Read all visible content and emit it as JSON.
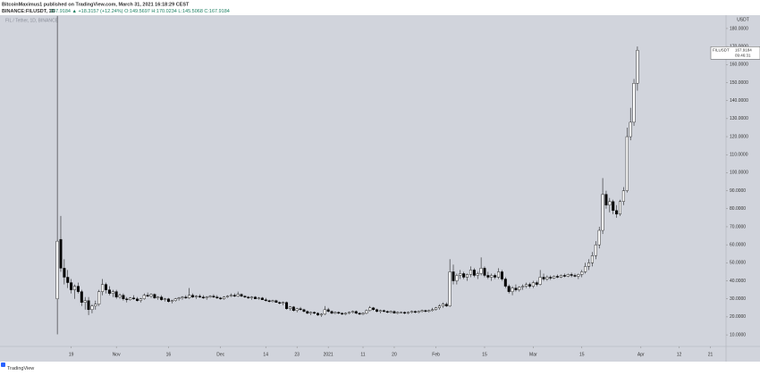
{
  "header": {
    "author_line": "BitcoinMaximus1 published on TradingView.com, March 31, 2021 16:18:29 CEST",
    "symbol": "BINANCE:FILUSDT, 1D",
    "quote": "167.9184 ▲ +18.3157 (+12.24%) O:149.5697 H:170.0234 L:145.5068 C:167.9184"
  },
  "footer": {
    "brand": "TradingView"
  },
  "chart_data": {
    "type": "candlestick",
    "watermark": "FIL / Tether, 1D, BINANCE",
    "y_unit": "USDT",
    "symbol_label": "FILUSDT",
    "countdown": "09:46:31",
    "up_color": "#ffffff",
    "down_color": "#000000",
    "outline_color": "#000000",
    "grid": false,
    "xlim": [
      -16.5,
      192.5
    ],
    "xticks": [
      {
        "value": 4,
        "label": "19"
      },
      {
        "value": 17,
        "label": "Nov"
      },
      {
        "value": 32,
        "label": "16"
      },
      {
        "value": 47,
        "label": "Dec"
      },
      {
        "value": 60,
        "label": "14"
      },
      {
        "value": 69,
        "label": "23"
      },
      {
        "value": 78,
        "label": "2021"
      },
      {
        "value": 88,
        "label": "11"
      },
      {
        "value": 97,
        "label": "20"
      },
      {
        "value": 109,
        "label": "Feb"
      },
      {
        "value": 123,
        "label": "15"
      },
      {
        "value": 137,
        "label": "Mar"
      },
      {
        "value": 151,
        "label": "15"
      },
      {
        "value": 168,
        "label": "Apr"
      },
      {
        "value": 179,
        "label": "12"
      },
      {
        "value": 188,
        "label": "21"
      }
    ],
    "ylim": [
      3.6,
      187.4
    ],
    "yticks": [
      {
        "value": 10,
        "label": "10.0000"
      },
      {
        "value": 20,
        "label": "20.0000"
      },
      {
        "value": 30,
        "label": "30.0000"
      },
      {
        "value": 40,
        "label": "40.0000"
      },
      {
        "value": 50,
        "label": "50.0000"
      },
      {
        "value": 60,
        "label": "60.0000"
      },
      {
        "value": 70,
        "label": "70.0000"
      },
      {
        "value": 80,
        "label": "80.0000"
      },
      {
        "value": 90,
        "label": "90.0000"
      },
      {
        "value": 100,
        "label": "100.0000"
      },
      {
        "value": 110,
        "label": "110.0000"
      },
      {
        "value": 120,
        "label": "120.0000"
      },
      {
        "value": 130,
        "label": "130.0000"
      },
      {
        "value": 140,
        "label": "140.0000"
      },
      {
        "value": 150,
        "label": "150.0000"
      },
      {
        "value": 160,
        "label": "160.0000"
      },
      {
        "value": 170,
        "label": "170.0000"
      },
      {
        "value": 180,
        "label": "180.0000"
      }
    ],
    "ohlc": [
      [
        30,
        187,
        10.3,
        62
      ],
      [
        63,
        76,
        45,
        47
      ],
      [
        47,
        52,
        38,
        42
      ],
      [
        42,
        46,
        36,
        39
      ],
      [
        39,
        41,
        33,
        35
      ],
      [
        35,
        38,
        30,
        37
      ],
      [
        37,
        39,
        33,
        34
      ],
      [
        34,
        35,
        26,
        28
      ],
      [
        28,
        31,
        24,
        29
      ],
      [
        29,
        31,
        21,
        24
      ],
      [
        24,
        27,
        22,
        26
      ],
      [
        26,
        29,
        24,
        27
      ],
      [
        27,
        35,
        26,
        34
      ],
      [
        34,
        41,
        32,
        38
      ],
      [
        38,
        39,
        33,
        35
      ],
      [
        35,
        37,
        32,
        33
      ],
      [
        33,
        35,
        31,
        34
      ],
      [
        34,
        35,
        30,
        31
      ],
      [
        31,
        33,
        30,
        32
      ],
      [
        32,
        33,
        29,
        30
      ],
      [
        30,
        31,
        28,
        29.5
      ],
      [
        29.5,
        31,
        29,
        30.5
      ],
      [
        30.5,
        32,
        29.5,
        30
      ],
      [
        30,
        31,
        28.5,
        29
      ],
      [
        29,
        30.5,
        28,
        30
      ],
      [
        30,
        33,
        29.5,
        32
      ],
      [
        32,
        33.5,
        31,
        31.5
      ],
      [
        31.5,
        33,
        30.5,
        32.5
      ],
      [
        32.5,
        33,
        30,
        30.5
      ],
      [
        30.5,
        31.5,
        29.5,
        31
      ],
      [
        31,
        32,
        29,
        29.5
      ],
      [
        29.5,
        30.5,
        28.5,
        30
      ],
      [
        30,
        30.5,
        28,
        28.5
      ],
      [
        28.5,
        29.5,
        27.5,
        29
      ],
      [
        29,
        30.5,
        28.5,
        30
      ],
      [
        30,
        31,
        29,
        30.5
      ],
      [
        30.5,
        31.5,
        29.5,
        31
      ],
      [
        31,
        32,
        30,
        30.5
      ],
      [
        30.5,
        36,
        30,
        32
      ],
      [
        32,
        33,
        30.5,
        31
      ],
      [
        31,
        32,
        30,
        31.5
      ],
      [
        31.5,
        32.5,
        30.5,
        31
      ],
      [
        31,
        32,
        30,
        30.5
      ],
      [
        30.5,
        31.5,
        29.5,
        31
      ],
      [
        31,
        32,
        30.5,
        31.5
      ],
      [
        31.5,
        32.5,
        30.5,
        31
      ],
      [
        31,
        32,
        30,
        30.5
      ],
      [
        30.5,
        31,
        29.5,
        30
      ],
      [
        30,
        31.5,
        29.5,
        31
      ],
      [
        31,
        32,
        30.5,
        31.5
      ],
      [
        31.5,
        33,
        31,
        32
      ],
      [
        32,
        33,
        31,
        31.5
      ],
      [
        31.5,
        34,
        31,
        32.5
      ],
      [
        32.5,
        33,
        31,
        31.5
      ],
      [
        31.5,
        32,
        30.5,
        31
      ],
      [
        31,
        31.5,
        30,
        30.5
      ],
      [
        30.5,
        31.5,
        29.5,
        31
      ],
      [
        31,
        31.5,
        30,
        30
      ],
      [
        30,
        31,
        29.5,
        30.5
      ],
      [
        30.5,
        31,
        29.5,
        29.5
      ],
      [
        29.5,
        30.5,
        28.5,
        29
      ],
      [
        29,
        29.5,
        28,
        28.5
      ],
      [
        28.5,
        29.5,
        28,
        29
      ],
      [
        29,
        29.5,
        28,
        28
      ],
      [
        28,
        28.5,
        27,
        27.5
      ],
      [
        27.5,
        28.5,
        26.5,
        28
      ],
      [
        28,
        28.5,
        24,
        24.5
      ],
      [
        24.5,
        26,
        23.5,
        25.5
      ],
      [
        25.5,
        26,
        23,
        23.5
      ],
      [
        23.5,
        25,
        22.5,
        24.5
      ],
      [
        24.5,
        25.5,
        23.5,
        24
      ],
      [
        24,
        24.5,
        22.5,
        23
      ],
      [
        23,
        23.5,
        21.5,
        22
      ],
      [
        22,
        23,
        21,
        22.5
      ],
      [
        22.5,
        23,
        21.5,
        22
      ],
      [
        22,
        22.5,
        20.5,
        21
      ],
      [
        21,
        22,
        20,
        21.5
      ],
      [
        21.5,
        26,
        21,
        24
      ],
      [
        24,
        25,
        22.5,
        23
      ],
      [
        23,
        23.5,
        21.5,
        22
      ],
      [
        22,
        23,
        21.5,
        22.5
      ],
      [
        22.5,
        23,
        21.5,
        22
      ],
      [
        22,
        22.5,
        21,
        21.5
      ],
      [
        21.5,
        22.5,
        21,
        22
      ],
      [
        22,
        23,
        21.5,
        22.5
      ],
      [
        22.5,
        23.5,
        22,
        23
      ],
      [
        23,
        23.5,
        21.5,
        22
      ],
      [
        22,
        22.5,
        21,
        21.5
      ],
      [
        21.5,
        22.5,
        21,
        22
      ],
      [
        22,
        24,
        21.5,
        23.5
      ],
      [
        23.5,
        26,
        23,
        25
      ],
      [
        25,
        25.5,
        23.5,
        24
      ],
      [
        24,
        24.5,
        22.5,
        23
      ],
      [
        23,
        24,
        22,
        23.5
      ],
      [
        23.5,
        24,
        22.5,
        23
      ],
      [
        23,
        23.5,
        22,
        22.5
      ],
      [
        22.5,
        23.5,
        22,
        23
      ],
      [
        23,
        23.5,
        22,
        22
      ],
      [
        22,
        23,
        21.5,
        22.5
      ],
      [
        22.5,
        23,
        22,
        22.5
      ],
      [
        22.5,
        23,
        21.5,
        22
      ],
      [
        22,
        23,
        21.5,
        22.5
      ],
      [
        22.5,
        23.5,
        22,
        23
      ],
      [
        23,
        23.5,
        22,
        22.5
      ],
      [
        22.5,
        23.5,
        22,
        23
      ],
      [
        23,
        24,
        22.5,
        23.5
      ],
      [
        23.5,
        24,
        22.5,
        23
      ],
      [
        23,
        24,
        22.5,
        23.5
      ],
      [
        23.5,
        25,
        23,
        24
      ],
      [
        24,
        25.5,
        23.5,
        25
      ],
      [
        25,
        27,
        24,
        26
      ],
      [
        26,
        28,
        25,
        27
      ],
      [
        27,
        28,
        25.5,
        26
      ],
      [
        26,
        52,
        25.5,
        45
      ],
      [
        45,
        49,
        38,
        40
      ],
      [
        40,
        44,
        38,
        43
      ],
      [
        43,
        46,
        41,
        44
      ],
      [
        44,
        45,
        41,
        42
      ],
      [
        42,
        44,
        40,
        43.5
      ],
      [
        43.5,
        48,
        42,
        46
      ],
      [
        46,
        47,
        42,
        43
      ],
      [
        43,
        45,
        41,
        44
      ],
      [
        44,
        53,
        43,
        47
      ],
      [
        47,
        48,
        42,
        43
      ],
      [
        43,
        45,
        41,
        42
      ],
      [
        42,
        44,
        40,
        43
      ],
      [
        43,
        44,
        41,
        42
      ],
      [
        42,
        47,
        41,
        45
      ],
      [
        45,
        46,
        40,
        41
      ],
      [
        41,
        42,
        36,
        37
      ],
      [
        37,
        38,
        33,
        34
      ],
      [
        34,
        37,
        32,
        36
      ],
      [
        36,
        38,
        34,
        35
      ],
      [
        35,
        37,
        34,
        36.5
      ],
      [
        36.5,
        38,
        35,
        37
      ],
      [
        37,
        39,
        36,
        38
      ],
      [
        38,
        39,
        36,
        37
      ],
      [
        37,
        40,
        36,
        39
      ],
      [
        39,
        40,
        37,
        38
      ],
      [
        38,
        46,
        37.5,
        42
      ],
      [
        42,
        44,
        40,
        41
      ],
      [
        41,
        43,
        40,
        42
      ],
      [
        42,
        43,
        40.5,
        41.5
      ],
      [
        41.5,
        43,
        41,
        42.5
      ],
      [
        42.5,
        43.5,
        41.5,
        42
      ],
      [
        42,
        43.5,
        41.5,
        43
      ],
      [
        43,
        44,
        42,
        42.5
      ],
      [
        42.5,
        44,
        42,
        43.5
      ],
      [
        43.5,
        44.5,
        42,
        43
      ],
      [
        43,
        44,
        42,
        42.5
      ],
      [
        42.5,
        44,
        41,
        43.5
      ],
      [
        43.5,
        46,
        42,
        45
      ],
      [
        45,
        50,
        44,
        48
      ],
      [
        48,
        52,
        46,
        50
      ],
      [
        50,
        56,
        48,
        54
      ],
      [
        54,
        62,
        52,
        60
      ],
      [
        60,
        70,
        58,
        68
      ],
      [
        68,
        97,
        66,
        88
      ],
      [
        88,
        90,
        80,
        82
      ],
      [
        82,
        86,
        78,
        84
      ],
      [
        84,
        85,
        77,
        79
      ],
      [
        79,
        82,
        75,
        77
      ],
      [
        77,
        85,
        76,
        84
      ],
      [
        84,
        92,
        82,
        90
      ],
      [
        90,
        125,
        89,
        120
      ],
      [
        120,
        136,
        118,
        128
      ],
      [
        128,
        152,
        126,
        149.6
      ],
      [
        149.5697,
        170.0234,
        145.5068,
        167.9184
      ]
    ]
  }
}
